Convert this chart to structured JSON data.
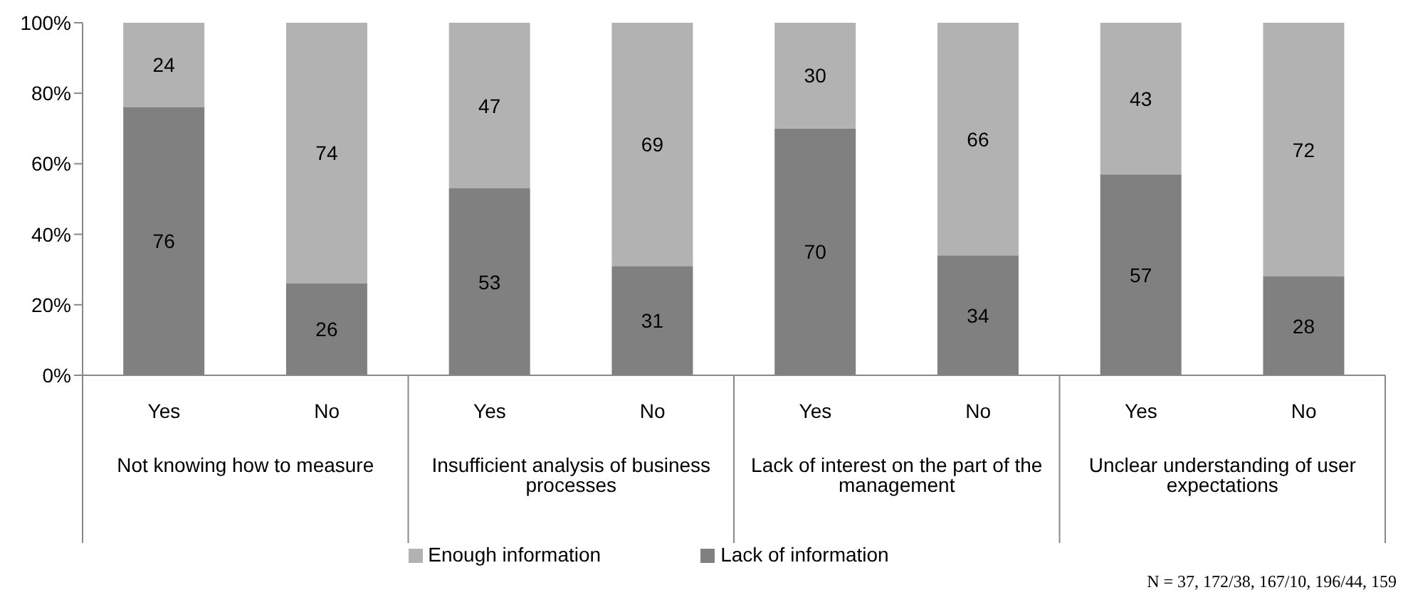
{
  "chart_data": {
    "type": "bar",
    "stacked": true,
    "categories": [
      "Yes",
      "No",
      "Yes",
      "No",
      "Yes",
      "No",
      "Yes",
      "No"
    ],
    "series": [
      {
        "name": "Lack of information",
        "color": "#808080",
        "values": [
          76,
          26,
          53,
          31,
          70,
          34,
          57,
          28
        ]
      },
      {
        "name": "Enough information",
        "color": "#b2b2b2",
        "values": [
          24,
          74,
          47,
          69,
          30,
          66,
          43,
          72
        ]
      }
    ],
    "ylim": [
      0,
      100
    ],
    "yticks": [
      {
        "value": 0,
        "label": "0%"
      },
      {
        "value": 20,
        "label": "20%"
      },
      {
        "value": 40,
        "label": "40%"
      },
      {
        "value": 60,
        "label": "60%"
      },
      {
        "value": 80,
        "label": "80%"
      },
      {
        "value": 100,
        "label": "100%"
      }
    ],
    "data_labels": true,
    "grid": false,
    "legend": "bottom",
    "annotations": [
      "Not knowing how to measure",
      "Insufficient analysis of business processes",
      "Lack of interest on the part of the management",
      "Unclear understanding of user expectations",
      "N = 37, 172/38, 167/10, 196/44, 159"
    ]
  }
}
